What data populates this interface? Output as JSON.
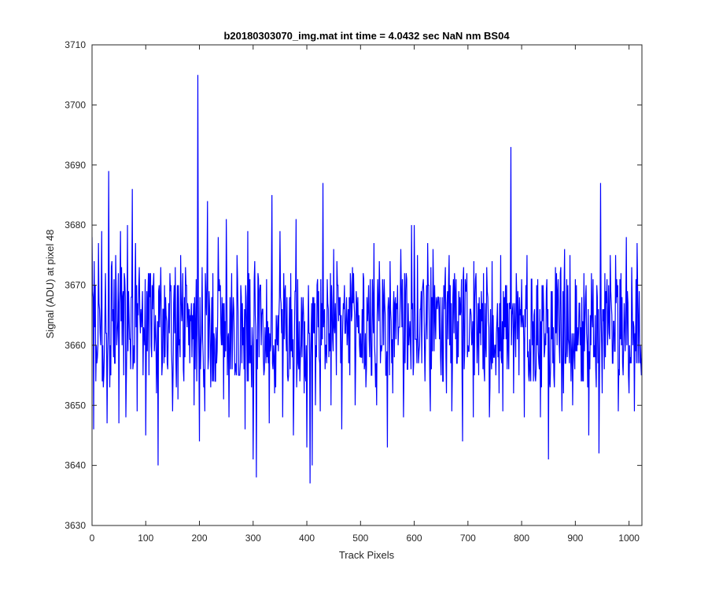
{
  "chart_data": {
    "type": "line",
    "title": "b20180303070_img.mat int time = 4.0432 sec  NaN nm BS04",
    "xlabel": "Track Pixels",
    "ylabel": "Signal (ADU) at pixel 48",
    "xlim": [
      0,
      1024
    ],
    "ylim": [
      3630,
      3710
    ],
    "xticks": [
      0,
      100,
      200,
      300,
      400,
      500,
      600,
      700,
      800,
      900,
      1000
    ],
    "yticks": [
      3630,
      3640,
      3650,
      3660,
      3670,
      3680,
      3690,
      3700,
      3710
    ],
    "grid": false,
    "legend": "none",
    "series": [
      {
        "color": "#0000ff",
        "x": [
          0,
          3,
          6,
          8,
          12,
          15,
          18,
          22,
          25,
          28,
          31,
          34,
          37,
          40,
          44,
          47,
          50,
          53,
          56,
          60,
          63,
          66,
          69,
          72,
          75,
          78,
          81,
          84,
          87,
          90,
          95,
          100,
          105,
          110,
          115,
          120,
          123,
          127,
          130,
          135,
          140,
          145,
          150,
          155,
          160,
          165,
          170,
          175,
          180,
          185,
          190,
          193,
          197,
          200,
          205,
          210,
          215,
          220,
          225,
          230,
          235,
          240,
          245,
          250,
          255,
          260,
          265,
          270,
          275,
          280,
          285,
          290,
          295,
          300,
          303,
          306,
          310,
          315,
          320,
          325,
          330,
          335,
          340,
          345,
          350,
          355,
          360,
          365,
          370,
          375,
          380,
          385,
          390,
          395,
          400,
          403,
          406,
          408,
          410,
          413,
          416,
          420,
          425,
          430,
          435,
          440,
          445,
          450,
          455,
          460,
          465,
          470,
          475,
          480,
          485,
          490,
          495,
          500,
          505,
          510,
          515,
          520,
          525,
          530,
          535,
          540,
          545,
          550,
          555,
          560,
          565,
          570,
          575,
          580,
          585,
          590,
          595,
          598,
          600,
          603,
          606,
          610,
          615,
          620,
          625,
          630,
          635,
          640,
          645,
          650,
          655,
          660,
          665,
          670,
          675,
          680,
          685,
          690,
          695,
          700,
          705,
          710,
          715,
          720,
          725,
          730,
          735,
          740,
          745,
          750,
          755,
          758,
          761,
          765,
          770,
          775,
          780,
          785,
          790,
          795,
          800,
          805,
          810,
          815,
          820,
          825,
          830,
          835,
          840,
          845,
          850,
          855,
          860,
          865,
          870,
          875,
          880,
          885,
          890,
          895,
          900,
          905,
          910,
          915,
          920,
          925,
          930,
          935,
          940,
          944,
          947,
          950,
          955,
          960,
          965,
          970,
          975,
          980,
          985,
          990,
          995,
          1000,
          1005,
          1010,
          1015,
          1020,
          1024
        ],
        "y": [
          3678,
          3646,
          3670,
          3660,
          3677,
          3662,
          3679,
          3655,
          3672,
          3647,
          3689,
          3660,
          3674,
          3658,
          3675,
          3662,
          3647,
          3679,
          3660,
          3672,
          3648,
          3680,
          3665,
          3656,
          3686,
          3660,
          3677,
          3649,
          3670,
          3662,
          3655,
          3645,
          3672,
          3660,
          3672,
          3652,
          3640,
          3668,
          3655,
          3670,
          3657,
          3672,
          3649,
          3673,
          3651,
          3675,
          3656,
          3670,
          3660,
          3667,
          3650,
          3664,
          3705,
          3644,
          3673,
          3649,
          3684,
          3660,
          3672,
          3654,
          3678,
          3662,
          3651,
          3681,
          3648,
          3672,
          3660,
          3675,
          3655,
          3667,
          3646,
          3679,
          3657,
          3641,
          3674,
          3638,
          3671,
          3660,
          3655,
          3671,
          3647,
          3685,
          3652,
          3660,
          3679,
          3648,
          3670,
          3654,
          3672,
          3645,
          3681,
          3656,
          3668,
          3652,
          3643,
          3670,
          3637,
          3662,
          3640,
          3668,
          3650,
          3671,
          3649,
          3687,
          3660,
          3666,
          3650,
          3676,
          3655,
          3668,
          3646,
          3670,
          3660,
          3655,
          3673,
          3650,
          3668,
          3662,
          3672,
          3653,
          3670,
          3655,
          3677,
          3650,
          3674,
          3660,
          3667,
          3643,
          3674,
          3652,
          3668,
          3660,
          3676,
          3648,
          3672,
          3660,
          3680,
          3655,
          3680,
          3661,
          3675,
          3660,
          3669,
          3654,
          3677,
          3649,
          3676,
          3661,
          3668,
          3655,
          3670,
          3652,
          3675,
          3649,
          3672,
          3657,
          3668,
          3644,
          3671,
          3660,
          3666,
          3648,
          3672,
          3655,
          3669,
          3656,
          3673,
          3648,
          3674,
          3660,
          3667,
          3652,
          3675,
          3649,
          3670,
          3660,
          3693,
          3652,
          3672,
          3655,
          3671,
          3648,
          3675,
          3661,
          3660,
          3655,
          3671,
          3648,
          3670,
          3660,
          3641,
          3669,
          3655,
          3672,
          3660,
          3649,
          3676,
          3658,
          3675,
          3650,
          3671,
          3660,
          3663,
          3654,
          3670,
          3645,
          3672,
          3660,
          3670,
          3642,
          3687,
          3652,
          3672,
          3660,
          3675,
          3657,
          3675,
          3649,
          3672,
          3660,
          3678,
          3652,
          3673,
          3649,
          3677,
          3657,
          3660
        ],
        "noise": {
          "count": 1025,
          "center": 3663,
          "amp": 7,
          "min": 3637,
          "max": 3705
        }
      }
    ]
  }
}
